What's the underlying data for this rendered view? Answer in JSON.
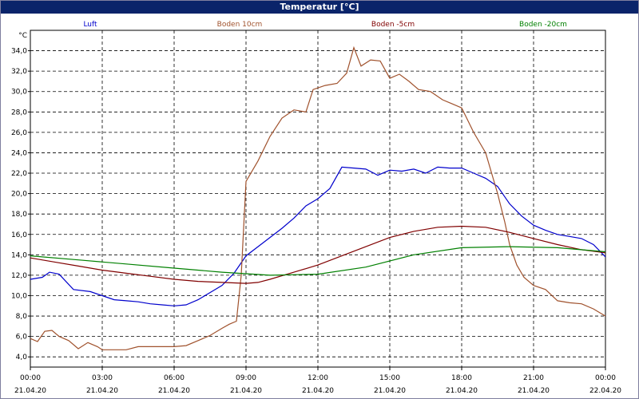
{
  "window": {
    "title": "Temperatur [°C]"
  },
  "chart_data": {
    "type": "line",
    "title": "Temperatur [°C]",
    "ylabel": "°C",
    "xlabel": "",
    "ylim": [
      3.0,
      36.0
    ],
    "grid": true,
    "legend_position": "top",
    "y_ticks": [
      "4,0",
      "6,0",
      "8,0",
      "10,0",
      "12,0",
      "14,0",
      "16,0",
      "18,0",
      "20,0",
      "22,0",
      "24,0",
      "26,0",
      "28,0",
      "30,0",
      "32,0",
      "34,0"
    ],
    "x_ticks": [
      {
        "time": "00:00",
        "date": "21.04.20"
      },
      {
        "time": "03:00",
        "date": "21.04.20"
      },
      {
        "time": "06:00",
        "date": "21.04.20"
      },
      {
        "time": "09:00",
        "date": "21.04.20"
      },
      {
        "time": "12:00",
        "date": "21.04.20"
      },
      {
        "time": "15:00",
        "date": "21.04.20"
      },
      {
        "time": "18:00",
        "date": "21.04.20"
      },
      {
        "time": "21:00",
        "date": "21.04.20"
      },
      {
        "time": "00:00",
        "date": "22.04.20"
      }
    ],
    "x_range_hours": [
      0,
      24
    ],
    "series": [
      {
        "name": "Luft",
        "color": "#0000cc",
        "x": [
          0,
          0.5,
          0.8,
          1.2,
          1.8,
          2.5,
          3.0,
          3.5,
          4.0,
          4.5,
          5.0,
          5.5,
          6.0,
          6.5,
          7.0,
          7.5,
          8.0,
          8.5,
          9.0,
          9.5,
          10.0,
          10.5,
          11.0,
          11.5,
          12.0,
          12.5,
          13.0,
          13.5,
          14.0,
          14.5,
          15.0,
          15.5,
          16.0,
          16.5,
          17.0,
          17.5,
          18.0,
          18.5,
          19.0,
          19.5,
          20.0,
          20.5,
          21.0,
          21.5,
          22.0,
          22.5,
          23.0,
          23.5,
          24.0
        ],
        "y": [
          11.6,
          11.8,
          12.3,
          12.1,
          10.6,
          10.4,
          10.0,
          9.6,
          9.5,
          9.4,
          9.2,
          9.1,
          9.0,
          9.1,
          9.6,
          10.3,
          11.0,
          12.2,
          13.9,
          14.8,
          15.7,
          16.6,
          17.6,
          18.8,
          19.5,
          20.5,
          22.6,
          22.5,
          22.4,
          21.8,
          22.3,
          22.2,
          22.4,
          22.0,
          22.6,
          22.5,
          22.5,
          22.0,
          21.5,
          20.7,
          19.0,
          17.8,
          16.9,
          16.4,
          16.0,
          15.8,
          15.6,
          15.0,
          13.8
        ]
      },
      {
        "name": "Boden 10cm",
        "color": "#a0522d",
        "x": [
          0,
          0.3,
          0.6,
          0.9,
          1.2,
          1.6,
          2.0,
          2.4,
          2.8,
          3.0,
          3.5,
          4.0,
          4.5,
          5.0,
          5.5,
          6.0,
          6.5,
          7.0,
          7.5,
          8.0,
          8.3,
          8.6,
          8.8,
          9.0,
          9.5,
          10.0,
          10.5,
          11.0,
          11.5,
          11.8,
          12.3,
          12.8,
          13.2,
          13.5,
          13.8,
          14.2,
          14.6,
          15.0,
          15.4,
          15.8,
          16.2,
          16.7,
          17.2,
          17.6,
          18.0,
          18.5,
          19.0,
          19.5,
          19.8,
          20.0,
          20.3,
          20.6,
          21.0,
          21.5,
          22.0,
          22.5,
          23.0,
          23.5,
          24.0
        ],
        "y": [
          5.8,
          5.5,
          6.5,
          6.6,
          6.0,
          5.6,
          4.8,
          5.4,
          5.0,
          4.7,
          4.7,
          4.7,
          5.0,
          5.0,
          5.0,
          5.0,
          5.1,
          5.6,
          6.1,
          6.8,
          7.2,
          7.5,
          12.0,
          21.2,
          23.2,
          25.6,
          27.4,
          28.2,
          28.0,
          30.2,
          30.6,
          30.8,
          31.8,
          34.3,
          32.5,
          33.1,
          33.0,
          31.3,
          31.7,
          31.0,
          30.2,
          30.0,
          29.2,
          28.8,
          28.4,
          26.0,
          24.0,
          20.0,
          17.2,
          15.0,
          13.0,
          11.8,
          11.0,
          10.6,
          9.5,
          9.3,
          9.2,
          8.7,
          8.0
        ]
      },
      {
        "name": "Boden -5cm",
        "color": "#800000",
        "x": [
          0,
          1,
          2,
          3,
          4,
          5,
          6,
          7,
          8,
          9,
          9.5,
          10,
          11,
          12,
          13,
          14,
          15,
          16,
          17,
          18,
          19,
          20,
          21,
          22,
          23,
          24
        ],
        "y": [
          13.7,
          13.3,
          12.9,
          12.5,
          12.2,
          11.9,
          11.6,
          11.4,
          11.3,
          11.2,
          11.3,
          11.6,
          12.3,
          13.0,
          13.9,
          14.8,
          15.7,
          16.3,
          16.7,
          16.8,
          16.7,
          16.2,
          15.6,
          15.0,
          14.5,
          14.2
        ]
      },
      {
        "name": "Boden -20cm",
        "color": "#008000",
        "x": [
          0,
          2,
          4,
          6,
          8,
          10,
          12,
          14,
          16,
          18,
          20,
          22,
          24
        ],
        "y": [
          13.9,
          13.5,
          13.1,
          12.7,
          12.3,
          12.0,
          12.1,
          12.8,
          14.0,
          14.7,
          14.8,
          14.7,
          14.3
        ]
      }
    ]
  }
}
